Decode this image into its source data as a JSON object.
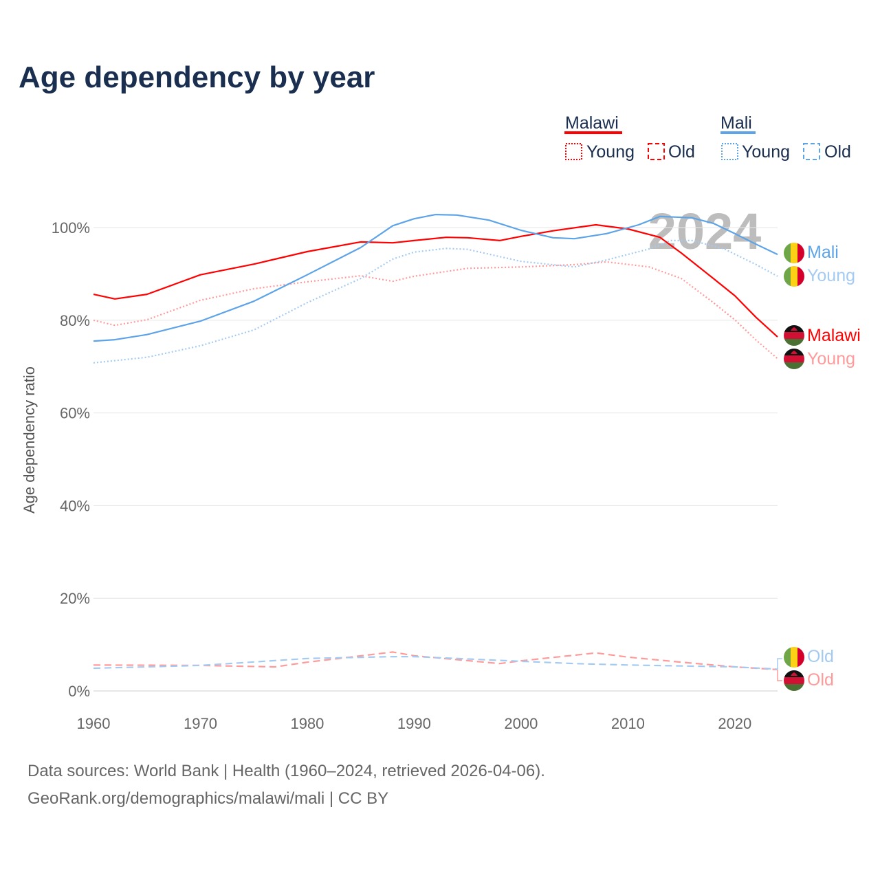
{
  "title": "Age dependency by year",
  "watermark_year": "2024",
  "legend": {
    "groups": [
      {
        "name": "Malawi",
        "color": "#ff0000",
        "young": "Young",
        "old": "Old"
      },
      {
        "name": "Mali",
        "color": "#5ca3e8",
        "young": "Young",
        "old": "Old"
      }
    ]
  },
  "end_labels": {
    "mali_total": "Mali",
    "mali_young": "Young",
    "mali_old": "Old",
    "malawi_total": "Malawi",
    "malawi_young": "Young",
    "malawi_old": "Old"
  },
  "footer": {
    "line1": "Data sources: World Bank | Health (1960–2024, retrieved 2026-04-06).",
    "line2": "GeoRank.org/demographics/malawi/mali | CC BY"
  },
  "chart_data": {
    "type": "line",
    "title": "Age dependency by year",
    "xlabel": "",
    "ylabel": "Age dependency ratio",
    "xlim": [
      1960,
      2024
    ],
    "ylim": [
      0,
      110
    ],
    "x_ticks": [
      "1960",
      "1970",
      "1980",
      "1990",
      "2000",
      "2010",
      "2020"
    ],
    "y_ticks": [
      "0%",
      "20%",
      "40%",
      "60%",
      "80%",
      "100%"
    ],
    "grid": true,
    "legend_position": "top-right",
    "series": [
      {
        "name": "Malawi",
        "country": "Malawi",
        "kind": "total",
        "color": "#ff0000",
        "style": "solid",
        "x": [
          1960,
          1962,
          1965,
          1970,
          1975,
          1980,
          1985,
          1988,
          1990,
          1993,
          1995,
          1998,
          2000,
          2003,
          2007,
          2010,
          2013,
          2015,
          2018,
          2020,
          2022,
          2024
        ],
        "y": [
          85.6,
          84.6,
          85.6,
          89.8,
          92.1,
          94.8,
          96.9,
          96.7,
          97.2,
          97.9,
          97.8,
          97.2,
          98.1,
          99.3,
          100.6,
          99.7,
          97.9,
          94.5,
          89.0,
          85.3,
          80.6,
          76.4
        ]
      },
      {
        "name": "Malawi Young",
        "country": "Malawi",
        "kind": "young",
        "color": "#ff9a9a",
        "style": "dotted",
        "x": [
          1960,
          1962,
          1965,
          1970,
          1975,
          1980,
          1985,
          1988,
          1990,
          1995,
          2000,
          2005,
          2008,
          2012,
          2015,
          2018,
          2020,
          2022,
          2024
        ],
        "y": [
          80.0,
          78.9,
          80.1,
          84.3,
          86.8,
          88.3,
          89.6,
          88.4,
          89.5,
          91.2,
          91.5,
          92.0,
          92.6,
          91.5,
          89.0,
          83.8,
          80.1,
          75.7,
          71.7
        ]
      },
      {
        "name": "Malawi Old",
        "country": "Malawi",
        "kind": "old",
        "color": "#ff9a9a",
        "style": "dashed",
        "x": [
          1960,
          1970,
          1977,
          1980,
          1988,
          1990,
          1998,
          2000,
          2007,
          2010,
          2015,
          2020,
          2024
        ],
        "y": [
          5.6,
          5.5,
          5.2,
          6.2,
          8.4,
          7.6,
          5.9,
          6.5,
          8.2,
          7.3,
          6.2,
          5.2,
          4.6
        ]
      },
      {
        "name": "Mali",
        "country": "Mali",
        "kind": "total",
        "color": "#5ca3e8",
        "style": "solid",
        "x": [
          1960,
          1962,
          1965,
          1970,
          1975,
          1980,
          1985,
          1988,
          1990,
          1992,
          1994,
          1997,
          2000,
          2003,
          2005,
          2008,
          2011,
          2013,
          2016,
          2018,
          2020,
          2022,
          2024
        ],
        "y": [
          75.5,
          75.8,
          76.9,
          79.8,
          84.1,
          89.8,
          95.7,
          100.4,
          101.9,
          102.8,
          102.7,
          101.6,
          99.4,
          97.8,
          97.6,
          98.7,
          100.6,
          102.4,
          102.1,
          100.9,
          98.7,
          96.4,
          94.2
        ]
      },
      {
        "name": "Mali Young",
        "country": "Mali",
        "kind": "young",
        "color": "#a3cbf2",
        "style": "dotted",
        "x": [
          1960,
          1965,
          1970,
          1975,
          1980,
          1985,
          1988,
          1990,
          1993,
          1995,
          2000,
          2005,
          2008,
          2012,
          2014,
          2016,
          2019,
          2022,
          2024
        ],
        "y": [
          70.8,
          72.0,
          74.5,
          77.9,
          83.8,
          89.0,
          93.2,
          94.7,
          95.5,
          95.3,
          92.7,
          91.5,
          93.0,
          95.4,
          97.2,
          97.2,
          95.4,
          92.0,
          89.5
        ]
      },
      {
        "name": "Mali Old",
        "country": "Mali",
        "kind": "old",
        "color": "#a3cbf2",
        "style": "dashed",
        "x": [
          1960,
          1970,
          1980,
          1988,
          1990,
          2000,
          2005,
          2010,
          2020,
          2024
        ],
        "y": [
          4.9,
          5.5,
          7.0,
          7.4,
          7.4,
          6.4,
          5.9,
          5.6,
          5.2,
          4.7
        ]
      }
    ]
  }
}
